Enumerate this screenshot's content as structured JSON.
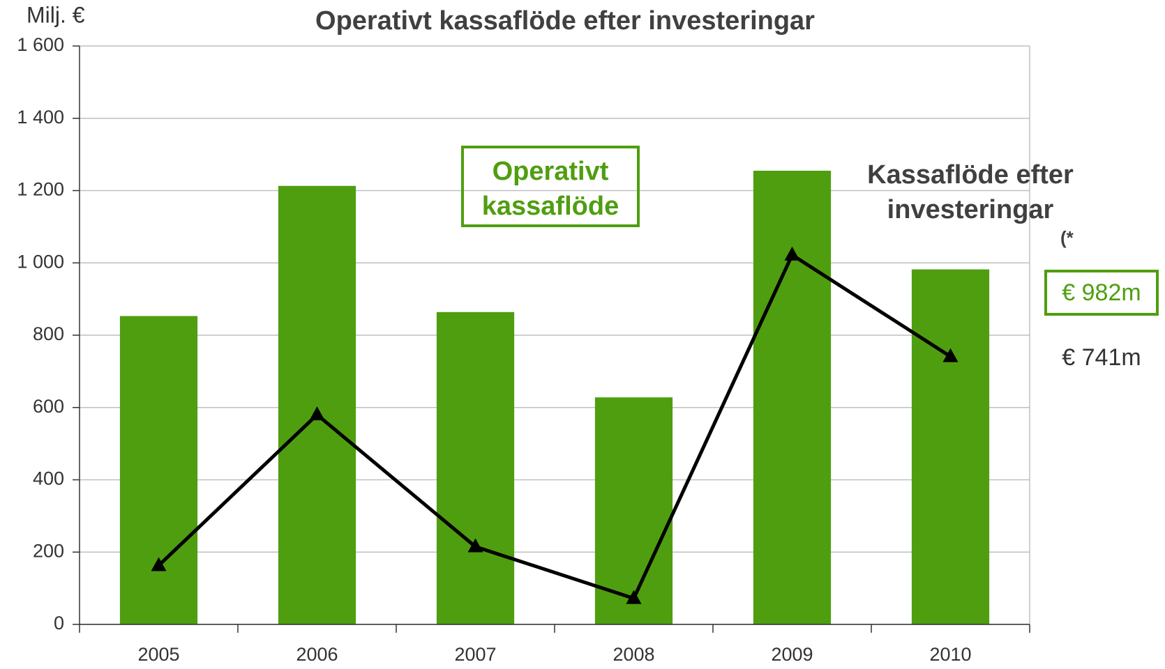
{
  "chart_data": {
    "type": "bar_line",
    "title": "Operativt kassaflöde efter investeringar",
    "y_axis_label": "Milj. €",
    "categories": [
      "2005",
      "2006",
      "2007",
      "2008",
      "2009",
      "2010"
    ],
    "series": [
      {
        "name": "Operativt kassaflöde",
        "type": "bar",
        "color": "#4f9e0f",
        "values": [
          853,
          1213,
          864,
          628,
          1255,
          982
        ],
        "value_labels": [
          null,
          null,
          null,
          null,
          null,
          "€ 982m"
        ]
      },
      {
        "name": "Kassaflöde efter investeringar",
        "type": "line",
        "color": "#000000",
        "values": [
          163,
          580,
          215,
          72,
          1022,
          741
        ],
        "value_labels": [
          null,
          null,
          null,
          null,
          null,
          "€ 741m"
        ]
      }
    ],
    "footnote_marker": "(*",
    "ylim": [
      0,
      1600
    ],
    "yticks": [
      0,
      200,
      400,
      600,
      800,
      {
        "value": 1000,
        "label": "1 000"
      },
      {
        "value": 1200,
        "label": "1 200"
      },
      {
        "value": 1400,
        "label": "1 400"
      },
      {
        "value": 1600,
        "label": "1 600"
      }
    ],
    "grid": true
  }
}
